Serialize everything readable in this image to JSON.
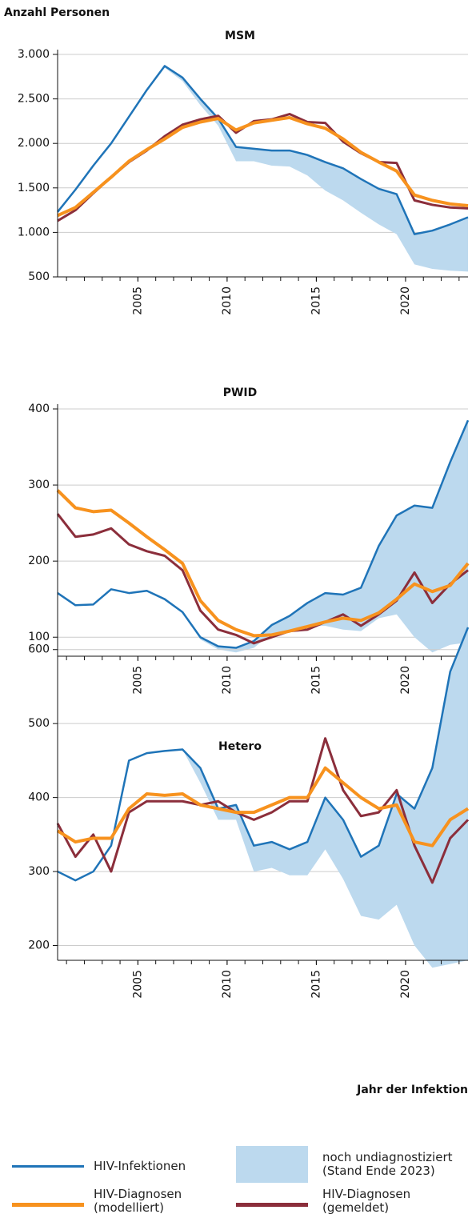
{
  "chart_data": [
    {
      "type": "line",
      "title": "MSM",
      "ylabel": "Anzahl Personen",
      "x": [
        2000.5,
        2001.5,
        2002.5,
        2003.5,
        2004.5,
        2005.5,
        2006.5,
        2007.5,
        2008.5,
        2009.5,
        2010.5,
        2011.5,
        2012.5,
        2013.5,
        2014.5,
        2015.5,
        2016.5,
        2017.5,
        2018.5,
        2019.5,
        2020.5,
        2021.5,
        2022.5,
        2023.5
      ],
      "xlim": [
        2000.5,
        2023.5
      ],
      "xticks": [
        2005,
        2010,
        2015,
        2020
      ],
      "xminorticks": [
        2001,
        2002,
        2003,
        2004,
        2005,
        2006,
        2007,
        2008,
        2009,
        2010,
        2011,
        2012,
        2013,
        2014,
        2015,
        2016,
        2017,
        2018,
        2019,
        2020,
        2021,
        2022,
        2023
      ],
      "ylim": [
        500,
        3000
      ],
      "yticks": [
        500,
        {
          "value": 1000,
          "label": "1.000"
        },
        {
          "value": 1500,
          "label": "1.500"
        },
        {
          "value": 2000,
          "label": "2.000"
        },
        {
          "value": 2500,
          "label": "2.500"
        },
        {
          "value": 3000,
          "label": "3.000"
        }
      ],
      "grid": true,
      "series": [
        {
          "name": "HIV-Infektionen",
          "color": "#1f74b8",
          "values": [
            1230,
            1480,
            1750,
            2000,
            2300,
            2600,
            2870,
            2740,
            2500,
            2280,
            1960,
            1940,
            1920,
            1920,
            1870,
            1790,
            1720,
            1600,
            1490,
            1430,
            980,
            1020,
            1090,
            1170
          ]
        },
        {
          "name": "noch undiagnostiziert (Stand Ende 2023)",
          "type": "band",
          "color": "#bcd9ee",
          "upper": [
            1230,
            1480,
            1750,
            2000,
            2300,
            2600,
            2870,
            2740,
            2500,
            2280,
            1960,
            1940,
            1920,
            1920,
            1870,
            1790,
            1720,
            1600,
            1490,
            1430,
            980,
            1020,
            1090,
            1170
          ],
          "lower": [
            1230,
            1480,
            1750,
            2000,
            2300,
            2600,
            2850,
            2700,
            2430,
            2200,
            1800,
            1800,
            1750,
            1740,
            1640,
            1470,
            1360,
            1220,
            1090,
            980,
            640,
            590,
            570,
            560
          ]
        },
        {
          "name": "HIV-Diagnosen (modelliert)",
          "color": "#f7921e",
          "values": [
            1190,
            1280,
            1450,
            1620,
            1800,
            1930,
            2050,
            2180,
            2240,
            2280,
            2150,
            2230,
            2260,
            2290,
            2220,
            2170,
            2050,
            1900,
            1790,
            1690,
            1420,
            1360,
            1320,
            1300
          ]
        },
        {
          "name": "HIV-Diagnosen (gemeldet)",
          "color": "#8b2e3b",
          "values": [
            1130,
            1250,
            1440,
            1620,
            1790,
            1920,
            2080,
            2210,
            2270,
            2310,
            2120,
            2250,
            2270,
            2330,
            2240,
            2230,
            2020,
            1890,
            1790,
            1780,
            1360,
            1310,
            1280,
            1270
          ]
        }
      ]
    },
    {
      "type": "line",
      "title": "PWID",
      "x": [
        2000.5,
        2001.5,
        2002.5,
        2003.5,
        2004.5,
        2005.5,
        2006.5,
        2007.5,
        2008.5,
        2009.5,
        2010.5,
        2011.5,
        2012.5,
        2013.5,
        2014.5,
        2015.5,
        2016.5,
        2017.5,
        2018.5,
        2019.5,
        2020.5,
        2021.5,
        2022.5,
        2023.5
      ],
      "xlim": [
        2000.5,
        2023.5
      ],
      "xticks": [
        2005,
        2010,
        2015,
        2020
      ],
      "xminorticks": [
        2001,
        2002,
        2003,
        2004,
        2005,
        2006,
        2007,
        2008,
        2009,
        2010,
        2011,
        2012,
        2013,
        2014,
        2015,
        2016,
        2017,
        2018,
        2019,
        2020,
        2021,
        2022,
        2023
      ],
      "ylim": [
        75,
        400
      ],
      "yticks": [
        100,
        200,
        300,
        400
      ],
      "grid": true,
      "series": [
        {
          "color": "#1f74b8",
          "values": [
            158,
            142,
            143,
            163,
            158,
            161,
            150,
            133,
            100,
            88,
            86,
            95,
            116,
            128,
            145,
            158,
            156,
            165,
            220,
            260,
            273,
            270,
            330,
            385
          ]
        },
        {
          "type": "band",
          "color": "#bcd9ee",
          "upper": [
            158,
            142,
            143,
            163,
            158,
            161,
            150,
            133,
            100,
            88,
            86,
            95,
            116,
            128,
            145,
            158,
            156,
            165,
            220,
            260,
            273,
            270,
            330,
            385
          ],
          "lower": [
            158,
            142,
            143,
            163,
            158,
            161,
            150,
            133,
            97,
            84,
            80,
            86,
            105,
            110,
            115,
            115,
            110,
            108,
            125,
            130,
            100,
            80,
            90,
            93
          ]
        },
        {
          "color": "#f7921e",
          "values": [
            293,
            270,
            265,
            267,
            250,
            232,
            215,
            197,
            148,
            122,
            110,
            102,
            103,
            108,
            114,
            120,
            125,
            122,
            132,
            150,
            170,
            160,
            168,
            197
          ]
        },
        {
          "color": "#8b2e3b",
          "values": [
            262,
            232,
            235,
            243,
            222,
            213,
            207,
            188,
            135,
            110,
            103,
            92,
            100,
            108,
            110,
            120,
            130,
            115,
            130,
            148,
            185,
            145,
            170,
            188
          ]
        }
      ]
    },
    {
      "type": "line",
      "title": "Hetero",
      "xlabel": "Jahr der Infektion",
      "x": [
        2000.5,
        2001.5,
        2002.5,
        2003.5,
        2004.5,
        2005.5,
        2006.5,
        2007.5,
        2008.5,
        2009.5,
        2010.5,
        2011.5,
        2012.5,
        2013.5,
        2014.5,
        2015.5,
        2016.5,
        2017.5,
        2018.5,
        2019.5,
        2020.5,
        2021.5,
        2022.5,
        2023.5
      ],
      "xlim": [
        2000.5,
        2023.5
      ],
      "xticks": [
        2005,
        2010,
        2015,
        2020
      ],
      "xminorticks": [
        2001,
        2002,
        2003,
        2004,
        2005,
        2006,
        2007,
        2008,
        2009,
        2010,
        2011,
        2012,
        2013,
        2014,
        2015,
        2016,
        2017,
        2018,
        2019,
        2020,
        2021,
        2022,
        2023
      ],
      "ylim": [
        180,
        630
      ],
      "yticks": [
        200,
        300,
        400,
        500,
        600
      ],
      "grid": true,
      "series": [
        {
          "color": "#1f74b8",
          "values": [
            300,
            288,
            300,
            335,
            450,
            460,
            463,
            465,
            440,
            385,
            390,
            335,
            340,
            330,
            340,
            400,
            370,
            320,
            335,
            405,
            385,
            440,
            570,
            630
          ]
        },
        {
          "type": "band",
          "color": "#bcd9ee",
          "upper": [
            300,
            288,
            300,
            335,
            450,
            460,
            463,
            465,
            440,
            385,
            390,
            335,
            340,
            330,
            340,
            400,
            370,
            320,
            335,
            405,
            385,
            440,
            570,
            630
          ],
          "lower": [
            300,
            288,
            300,
            335,
            450,
            460,
            463,
            465,
            420,
            370,
            370,
            300,
            305,
            295,
            295,
            330,
            290,
            240,
            235,
            255,
            200,
            170,
            175,
            180
          ]
        },
        {
          "color": "#f7921e",
          "values": [
            355,
            340,
            345,
            345,
            385,
            405,
            403,
            405,
            390,
            385,
            380,
            380,
            390,
            400,
            400,
            440,
            420,
            400,
            385,
            390,
            340,
            335,
            370,
            385
          ]
        },
        {
          "color": "#8b2e3b",
          "values": [
            365,
            320,
            350,
            300,
            380,
            395,
            395,
            395,
            390,
            395,
            380,
            370,
            380,
            395,
            395,
            480,
            410,
            375,
            380,
            410,
            335,
            285,
            345,
            370
          ]
        }
      ]
    }
  ]
}
